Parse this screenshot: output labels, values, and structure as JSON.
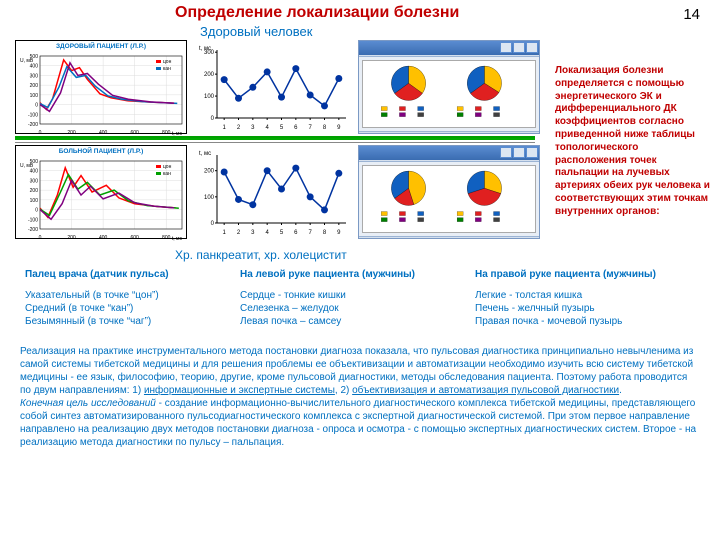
{
  "pageNumber": "14",
  "title": "Определение локализации болезни",
  "subtitle1": "Здоровый человек",
  "subtitle2": "Хр. панкреатит, хр. холецистит",
  "sideText": "Локализация болезни определяется с помощью энергетического ЭК и дифференциального ДК коэффициентов согласно приведенной ниже таблицы топологического расположения точек пальпации на лучевых артериях обеих рук человека и соответствующих этим точкам внутренних органов:",
  "colors": {
    "accentRed": "#c00000",
    "accentBlue": "#0070c0",
    "green": "#00a000",
    "purple": "#800080",
    "pulseRed": "#ff0000",
    "pieYellow": "#ffc000",
    "pieRed": "#e02020",
    "pieBlue": "#1060c0",
    "windowBorder": "#7b99c4"
  },
  "charts": {
    "healthy_wave": {
      "type": "line",
      "title": "ЗДОРОВЫЙ ПАЦИЕНТ (Л.Р.)",
      "xlabel": "t, мс",
      "ylabel": "U, мВ",
      "ylim": [
        -200,
        500
      ],
      "yticks": [
        -200,
        -100,
        0,
        100,
        200,
        300,
        400,
        500
      ],
      "xlim": [
        0,
        900
      ],
      "xticks": [
        0,
        200,
        400,
        600,
        800
      ],
      "xlabels_extra": {
        "600": "чаг"
      },
      "grid_color": "#dddddd",
      "series": [
        {
          "name": "цон",
          "color": "#ff0000",
          "width": 1.5,
          "points": [
            [
              0,
              20
            ],
            [
              40,
              -50
            ],
            [
              80,
              60
            ],
            [
              150,
              460
            ],
            [
              200,
              350
            ],
            [
              250,
              380
            ],
            [
              300,
              260
            ],
            [
              380,
              110
            ],
            [
              450,
              70
            ],
            [
              550,
              40
            ],
            [
              700,
              25
            ],
            [
              850,
              15
            ]
          ]
        },
        {
          "name": "кан",
          "color": "#0070c0",
          "width": 1.5,
          "points": [
            [
              0,
              10
            ],
            [
              50,
              -30
            ],
            [
              120,
              180
            ],
            [
              170,
              390
            ],
            [
              230,
              280
            ],
            [
              290,
              300
            ],
            [
              350,
              190
            ],
            [
              430,
              90
            ],
            [
              520,
              55
            ],
            [
              650,
              30
            ],
            [
              800,
              18
            ],
            [
              870,
              12
            ]
          ]
        },
        {
          "name": "lbl3",
          "color": "#800080",
          "width": 1.5,
          "points": [
            [
              0,
              0
            ],
            [
              60,
              -70
            ],
            [
              130,
              120
            ],
            [
              190,
              430
            ],
            [
              240,
              300
            ],
            [
              300,
              320
            ],
            [
              370,
              210
            ],
            [
              460,
              95
            ],
            [
              560,
              55
            ],
            [
              700,
              28
            ],
            [
              850,
              14
            ]
          ]
        }
      ],
      "legend": [
        "цон",
        "кан",
        ""
      ]
    },
    "sick_wave": {
      "type": "line",
      "title": "БОЛЬНОЙ ПАЦИЕНТ (Л.Р.)",
      "xlabel": "t, мс",
      "ylabel": "U, мВ",
      "ylim": [
        -200,
        500
      ],
      "yticks": [
        -200,
        -100,
        0,
        100,
        200,
        300,
        400,
        500
      ],
      "xlim": [
        0,
        900
      ],
      "xticks": [
        0,
        200,
        400,
        600,
        800
      ],
      "grid_color": "#dddddd",
      "series": [
        {
          "name": "цон",
          "color": "#ff0000",
          "width": 1.5,
          "points": [
            [
              0,
              15
            ],
            [
              50,
              -80
            ],
            [
              110,
              150
            ],
            [
              160,
              430
            ],
            [
              210,
              230
            ],
            [
              260,
              350
            ],
            [
              330,
              180
            ],
            [
              420,
              250
            ],
            [
              500,
              120
            ],
            [
              600,
              60
            ],
            [
              750,
              30
            ],
            [
              860,
              18
            ]
          ]
        },
        {
          "name": "кан",
          "color": "#00a000",
          "width": 1.5,
          "points": [
            [
              0,
              5
            ],
            [
              60,
              -60
            ],
            [
              130,
              180
            ],
            [
              180,
              360
            ],
            [
              240,
              210
            ],
            [
              300,
              280
            ],
            [
              380,
              150
            ],
            [
              470,
              200
            ],
            [
              560,
              90
            ],
            [
              680,
              40
            ],
            [
              820,
              22
            ],
            [
              880,
              14
            ]
          ]
        },
        {
          "name": "",
          "color": "#800080",
          "width": 1.5,
          "points": [
            [
              0,
              0
            ],
            [
              70,
              -100
            ],
            [
              140,
              60
            ],
            [
              200,
              300
            ],
            [
              260,
              150
            ],
            [
              320,
              240
            ],
            [
              400,
              110
            ],
            [
              500,
              170
            ],
            [
              600,
              70
            ],
            [
              720,
              35
            ],
            [
              850,
              18
            ]
          ]
        }
      ],
      "legend": [
        "цон",
        "кан",
        ""
      ]
    },
    "healthy_dots": {
      "type": "line-marker",
      "ylabel": "t, мс",
      "ylim": [
        0,
        310
      ],
      "yticks": [
        0,
        100,
        200,
        300
      ],
      "xlim": [
        0.5,
        9.5
      ],
      "xticks": [
        1,
        2,
        3,
        4,
        5,
        6,
        7,
        8,
        9
      ],
      "marker": "circle",
      "marker_color": "#0033a0",
      "marker_size": 5,
      "line_color": "#0033a0",
      "line_width": 1.5,
      "points": [
        [
          1,
          175
        ],
        [
          2,
          90
        ],
        [
          3,
          140
        ],
        [
          4,
          210
        ],
        [
          5,
          95
        ],
        [
          6,
          225
        ],
        [
          7,
          105
        ],
        [
          8,
          55
        ],
        [
          9,
          180
        ]
      ]
    },
    "sick_dots": {
      "type": "line-marker",
      "ylabel": "t, мс",
      "ylim": [
        0,
        260
      ],
      "yticks": [
        0,
        100,
        200
      ],
      "xlim": [
        0.5,
        9.5
      ],
      "xticks": [
        1,
        2,
        3,
        4,
        5,
        6,
        7,
        8,
        9
      ],
      "marker": "circle",
      "marker_color": "#0033a0",
      "marker_size": 5,
      "line_color": "#0033a0",
      "line_width": 1.5,
      "points": [
        [
          1,
          195
        ],
        [
          2,
          90
        ],
        [
          3,
          70
        ],
        [
          4,
          200
        ],
        [
          5,
          130
        ],
        [
          6,
          210
        ],
        [
          7,
          100
        ],
        [
          8,
          50
        ],
        [
          9,
          190
        ]
      ]
    },
    "pies_healthy": {
      "type": "pie-pair",
      "left": {
        "slices": [
          {
            "value": 35,
            "color": "#ffc000"
          },
          {
            "value": 30,
            "color": "#e02020"
          },
          {
            "value": 35,
            "color": "#1060c0"
          }
        ]
      },
      "right": {
        "slices": [
          {
            "value": 34,
            "color": "#ffc000"
          },
          {
            "value": 31,
            "color": "#e02020"
          },
          {
            "value": 35,
            "color": "#1060c0"
          }
        ]
      },
      "legend_colors": [
        "#ffc000",
        "#e02020",
        "#1060c0",
        "#008000",
        "#800080",
        "#404040"
      ]
    },
    "pies_sick": {
      "type": "pie-pair",
      "left": {
        "slices": [
          {
            "value": 45,
            "color": "#ffc000"
          },
          {
            "value": 20,
            "color": "#e02020"
          },
          {
            "value": 35,
            "color": "#1060c0"
          }
        ]
      },
      "right": {
        "slices": [
          {
            "value": 30,
            "color": "#ffc000"
          },
          {
            "value": 40,
            "color": "#e02020"
          },
          {
            "value": 30,
            "color": "#1060c0"
          }
        ]
      },
      "legend_colors": [
        "#ffc000",
        "#e02020",
        "#1060c0",
        "#008000",
        "#800080",
        "#404040"
      ]
    }
  },
  "table": {
    "header": [
      "Палец врача (датчик пульса)",
      "На левой руке пациента (мужчины)",
      "На правой руке пациента (мужчины)"
    ],
    "rows": [
      [
        "Указательный (в точке “цон”)",
        "Сердце - тонкие кишки",
        "Легкие - толстая кишка"
      ],
      [
        "Средний (в точке “кан”)",
        "Селезенка – желудок",
        "Печень - желчный пузырь"
      ],
      [
        "Безымянный (в точке “чаг”)",
        "Левая почка – самсеу",
        "Правая почка - мочевой пузырь"
      ]
    ]
  },
  "para": {
    "p1": "Реализация на практике инструментального метода постановки диагноза показала, что пульсовая диагностика принципиально невычленима из самой системы тибетской медицины и для решения проблемы ее объективизации и автоматизации необходимо изучить всю систему тибетской медицины - ее язык, философию, теорию, другие, кроме пульсовой диагностики, методы обследования пациента. Поэтому работа проводится  по двум направлениям: 1) ",
    "u1": "информационные и экспертные системы",
    "p2": ", 2) ",
    "u2": "объективизация и автоматизация пульсовой диагностики",
    "p3": ".",
    "goalLabel": "Конечная цель исследований",
    "p4": " - создание информационно-вычислительного диагностического комплекса тибетской медицины, представляющего собой синтез автоматизированного пульсодиагностического комплекса с экспертной диагностической системой. При этом первое направление направлено на реализацию двух методов постановки диагноза - опроса и осмотра - с помощью экспертных диагностических систем. Второе - на реализацию метода диагностики по пульсу – пальпация."
  }
}
